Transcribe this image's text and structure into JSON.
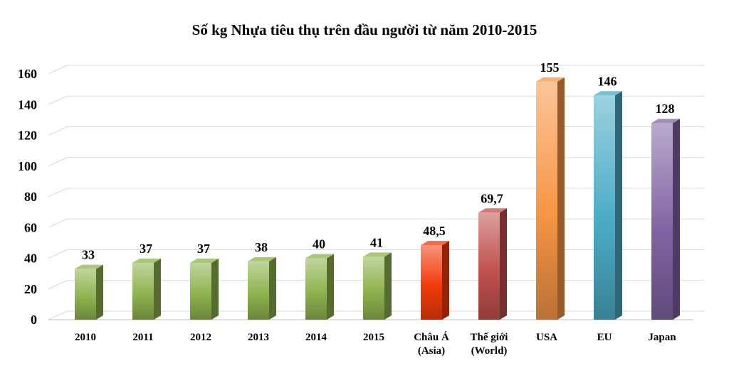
{
  "chart_data": {
    "type": "bar",
    "title": "Số kg Nhựa tiêu thụ trên đầu người từ năm 2010-2015",
    "xlabel": "",
    "ylabel": "",
    "ylim": [
      0,
      160
    ],
    "y_ticks": [
      0,
      20,
      40,
      60,
      80,
      100,
      120,
      140,
      160
    ],
    "grid": true,
    "categories": [
      [
        "2010"
      ],
      [
        "2011"
      ],
      [
        "2012"
      ],
      [
        "2013"
      ],
      [
        "2014"
      ],
      [
        "2015"
      ],
      [
        "Châu Á",
        "(Asia)"
      ],
      [
        "Thế giới",
        "(World)"
      ],
      [
        "USA"
      ],
      [
        "EU"
      ],
      [
        "Japan"
      ]
    ],
    "values": [
      33,
      37,
      37,
      38,
      40,
      41,
      48.5,
      69.7,
      155,
      146,
      128
    ],
    "data_labels": [
      "33",
      "37",
      "37",
      "38",
      "40",
      "41",
      "48,5",
      "69,7",
      "155",
      "146",
      "128"
    ],
    "colors": [
      "#8fb34f",
      "#8fb34f",
      "#8fb34f",
      "#8fb34f",
      "#8fb34f",
      "#8fb34f",
      "#f23a0a",
      "#c0504d",
      "#f79646",
      "#4bacc6",
      "#8064a2"
    ]
  }
}
